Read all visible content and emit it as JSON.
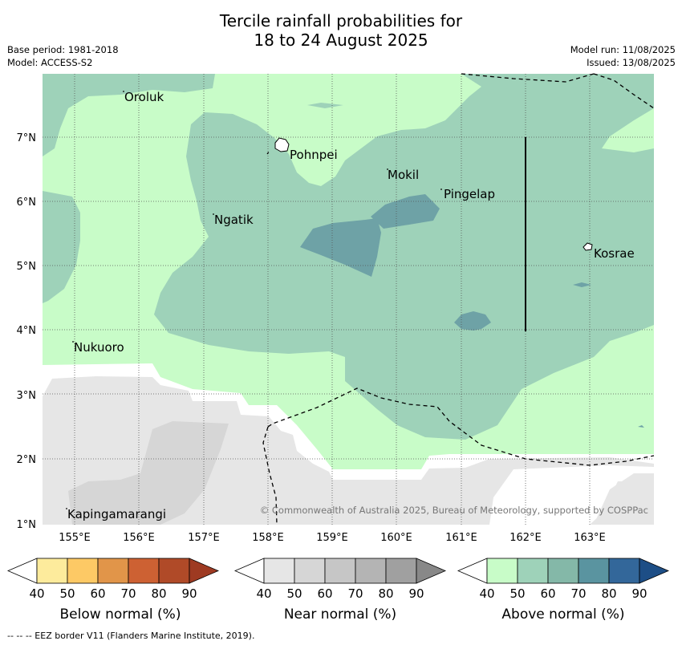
{
  "title_line1": "Tercile rainfall probabilities for",
  "title_line2": "18 to 24 August 2025",
  "base_period": "Base period: 1981-2018",
  "model": "Model: ACCESS-S2",
  "model_run": "Model run: 11/08/2025",
  "issued": "Issued: 13/08/2025",
  "copyright": "© Commonwealth of Australia 2025, Bureau of Meteorology, supported by COSPPac",
  "footer": "--  --  -- EEZ border V11 (Flanders Marine Institute, 2019).",
  "map": {
    "lon_labels": [
      "155°E",
      "156°E",
      "157°E",
      "158°E",
      "159°E",
      "160°E",
      "161°E",
      "162°E",
      "163°E"
    ],
    "lat_labels": [
      "1°N",
      "2°N",
      "3°N",
      "4°N",
      "5°N",
      "6°N",
      "7°N"
    ],
    "places": [
      {
        "name": "Oroluk"
      },
      {
        "name": "Pohnpei"
      },
      {
        "name": "Mokil"
      },
      {
        "name": "Pingelap"
      },
      {
        "name": "Ngatik"
      },
      {
        "name": "Kosrae"
      },
      {
        "name": "Nukuoro"
      },
      {
        "name": "Kapingamarangi"
      }
    ]
  },
  "colorbars": [
    {
      "label": "Below normal (%)",
      "ticks": [
        "40",
        "50",
        "60",
        "70",
        "80",
        "90"
      ],
      "colors": [
        "#ffffff",
        "#fdeb9c",
        "#fdc965",
        "#e19549",
        "#cd6133",
        "#b04a28",
        "#9e3a22"
      ]
    },
    {
      "label": "Near normal (%)",
      "ticks": [
        "40",
        "50",
        "60",
        "70",
        "80",
        "90"
      ],
      "colors": [
        "#ffffff",
        "#e6e6e6",
        "#d6d6d6",
        "#c6c6c6",
        "#b4b4b4",
        "#a0a0a0",
        "#888888"
      ]
    },
    {
      "label": "Above normal (%)",
      "ticks": [
        "40",
        "50",
        "60",
        "70",
        "80",
        "90"
      ],
      "colors": [
        "#ffffff",
        "#c8fcc8",
        "#9ed2b9",
        "#84b8a8",
        "#5a94a0",
        "#33679a",
        "#1d4e86"
      ]
    }
  ]
}
